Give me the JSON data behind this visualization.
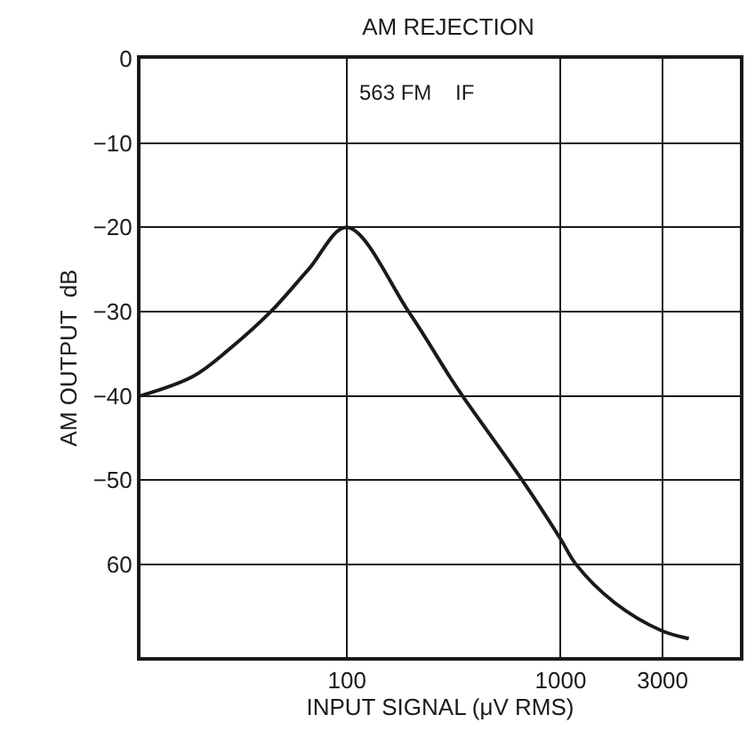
{
  "chart_data": {
    "type": "line",
    "title": "AM REJECTION",
    "xlabel": "INPUT SIGNAL (μV RMS)",
    "ylabel": "AM OUTPUT  dB",
    "x": [
      10.8,
      19,
      28,
      44,
      66,
      100,
      194,
      302,
      347,
      660,
      1000,
      1180,
      1780,
      2930,
      3980
    ],
    "series": [
      {
        "color": "#1a1a1a",
        "values": [
          -40,
          -37.7,
          -34.5,
          -30,
          -25,
          -20,
          -30,
          -37.7,
          -40,
          -50,
          -57,
          -60,
          -64.5,
          -67.8,
          -68.8
        ]
      }
    ],
    "log": "x",
    "xlim": [
      10.8,
      6900
    ],
    "xticks": [
      100,
      1000,
      3000
    ],
    "ylim": [
      -71,
      0
    ],
    "yticks": [
      0,
      {
        "value": -10,
        "label": "−10"
      },
      {
        "value": -20,
        "label": "−20"
      },
      {
        "value": -30,
        "label": "−30"
      },
      {
        "value": -40,
        "label": "−40"
      },
      {
        "value": -50,
        "label": "−50"
      },
      {
        "value": -60,
        "label": "60"
      }
    ],
    "grid": true,
    "legend": false,
    "marker": "none",
    "line_style": "solid",
    "annotations": [
      "563 FM    IF"
    ]
  }
}
